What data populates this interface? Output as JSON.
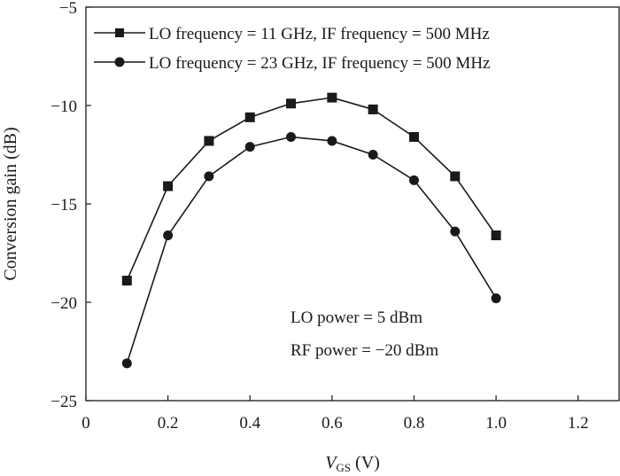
{
  "chart_data": {
    "type": "line",
    "xlabel": {
      "main": "V",
      "sub": "GS",
      "unit": " (V)"
    },
    "ylabel": "Conversion gain (dB)",
    "xlim": [
      0,
      1.3
    ],
    "ylim": [
      -25,
      -5
    ],
    "xticks": [
      0,
      0.2,
      0.4,
      0.6,
      0.8,
      1.0,
      1.2
    ],
    "xtick_labels": [
      "0",
      "0.2",
      "0.4",
      "0.6",
      "0.8",
      "1.0",
      "1.2"
    ],
    "yticks": [
      -25,
      -20,
      -15,
      -10,
      -5
    ],
    "ytick_labels": [
      "−25",
      "−20",
      "−15",
      "−10",
      "−5"
    ],
    "grid": false,
    "legend_position": "top-right",
    "x": [
      0.1,
      0.2,
      0.3,
      0.4,
      0.5,
      0.6,
      0.7,
      0.8,
      0.9,
      1.0
    ],
    "series": [
      {
        "name": "LO frequency = 11 GHz, IF frequency = 500 MHz",
        "marker": "square",
        "values": [
          -18.9,
          -14.1,
          -11.8,
          -10.6,
          -9.9,
          -9.6,
          -10.2,
          -11.6,
          -13.6,
          -16.6
        ]
      },
      {
        "name": "LO frequency = 23 GHz, IF frequency = 500 MHz",
        "marker": "circle",
        "values": [
          -23.1,
          -16.6,
          -13.6,
          -12.1,
          -11.6,
          -11.8,
          -12.5,
          -13.8,
          -16.4,
          -19.8
        ]
      }
    ],
    "annotations": [
      "LO power = 5 dBm",
      "RF power = −20 dBm"
    ],
    "color": "#1a1a1a"
  }
}
